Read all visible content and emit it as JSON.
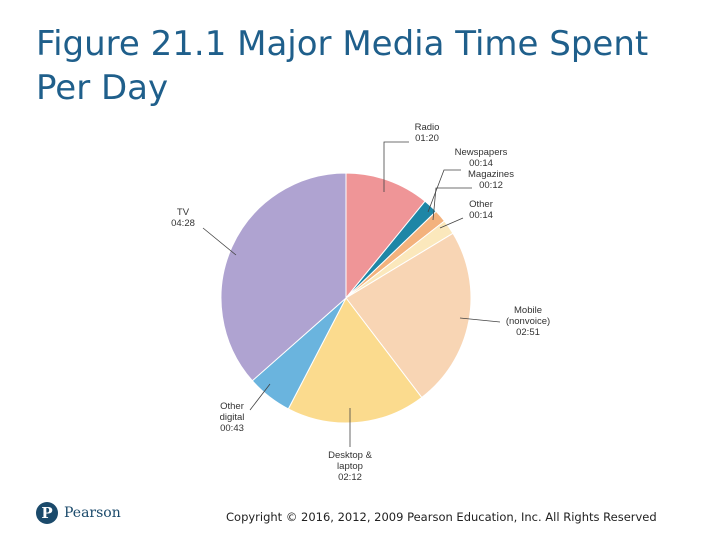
{
  "slide": {
    "title": "Figure 21.1 Major Media Time Spent Per Day",
    "logo_text": "Pearson",
    "logo_mark": "P",
    "copyright": "Copyright © 2016, 2012, 2009 Pearson Education, Inc. All Rights Reserved"
  },
  "chart_data": {
    "type": "pie",
    "title": "",
    "unit": "minutes per day",
    "slices": [
      {
        "name": "Radio",
        "label_lines": [
          "Radio"
        ],
        "display": "01:20",
        "value": 80,
        "color": "#ef9597"
      },
      {
        "name": "Newspapers",
        "label_lines": [
          "Newspapers"
        ],
        "display": "00:14",
        "value": 14,
        "color": "#1e86a6"
      },
      {
        "name": "Magazines",
        "label_lines": [
          "Magazines"
        ],
        "display": "00:12",
        "value": 12,
        "color": "#f3b27d"
      },
      {
        "name": "Other",
        "label_lines": [
          "Other"
        ],
        "display": "00:14",
        "value": 14,
        "color": "#fbe8bc"
      },
      {
        "name": "Mobile (nonvoice)",
        "label_lines": [
          "Mobile",
          "(nonvoice)"
        ],
        "display": "02:51",
        "value": 171,
        "color": "#f8d5b4"
      },
      {
        "name": "Desktop & laptop",
        "label_lines": [
          "Desktop &",
          "laptop"
        ],
        "display": "02:12",
        "value": 132,
        "color": "#fbdb8e"
      },
      {
        "name": "Other digital",
        "label_lines": [
          "Other",
          "digital"
        ],
        "display": "00:43",
        "value": 43,
        "color": "#6ab4de"
      },
      {
        "name": "TV",
        "label_lines": [
          "TV"
        ],
        "display": "04:28",
        "value": 268,
        "color": "#afa3d1"
      }
    ]
  }
}
